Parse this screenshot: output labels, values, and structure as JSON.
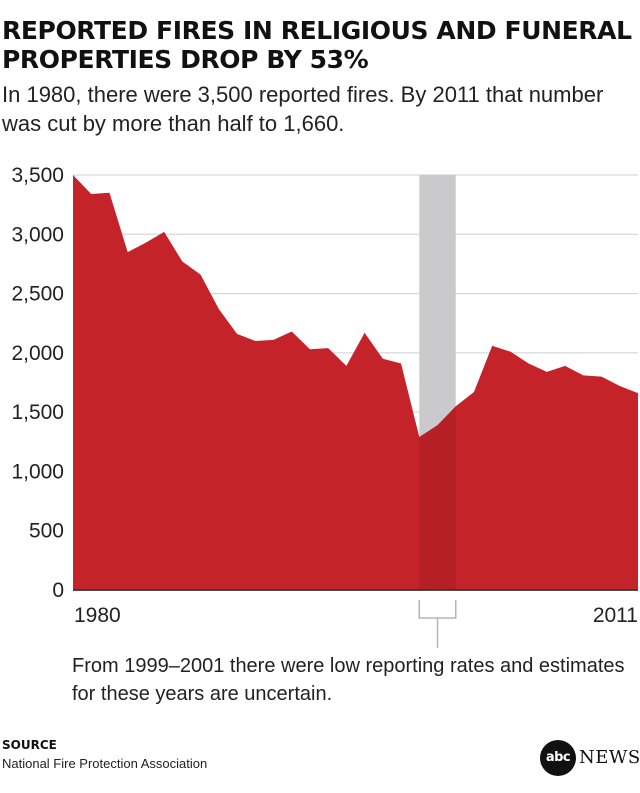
{
  "title": "REPORTED FIRES IN RELIGIOUS AND FUNERAL PROPERTIES DROP BY 53%",
  "subtitle": "In 1980, there were 3,500 reported fires. By 2011 that number was cut by more than half to 1,660.",
  "note": "From 1999–2001 there were low reporting rates and estimates for these years are uncertain.",
  "source_label": "SOURCE",
  "source_text": "National Fire Protection Association",
  "logo": {
    "circle_text": "abc",
    "word": "NEWS"
  },
  "colors": {
    "area": "#c4232a",
    "highlight": "#dcdcdf",
    "axis": "#333333",
    "grid": "#cfcfcf"
  },
  "chart_data": {
    "type": "area",
    "title": "REPORTED FIRES IN RELIGIOUS AND FUNERAL PROPERTIES DROP BY 53%",
    "xlabel": "",
    "ylabel": "",
    "x": [
      1980,
      1981,
      1982,
      1983,
      1984,
      1985,
      1986,
      1987,
      1988,
      1989,
      1990,
      1991,
      1992,
      1993,
      1994,
      1995,
      1996,
      1997,
      1998,
      1999,
      2000,
      2001,
      2002,
      2003,
      2004,
      2005,
      2006,
      2007,
      2008,
      2009,
      2010,
      2011
    ],
    "values": [
      3500,
      3340,
      3350,
      2850,
      2930,
      3020,
      2770,
      2660,
      2370,
      2160,
      2100,
      2110,
      2180,
      2030,
      2040,
      1890,
      2170,
      1950,
      1910,
      1290,
      1390,
      1550,
      1670,
      2060,
      2010,
      1910,
      1840,
      1890,
      1810,
      1800,
      1720,
      1660
    ],
    "xticks": [
      "1980",
      "2011"
    ],
    "yticks": [
      "0",
      "500",
      "1,000",
      "1,500",
      "2,000",
      "2,500",
      "3,000",
      "3,500"
    ],
    "ylim": [
      0,
      3500
    ],
    "xlim": [
      1980,
      2011
    ],
    "highlight_range": [
      1999,
      2001
    ],
    "grid": true,
    "legend": "none"
  }
}
